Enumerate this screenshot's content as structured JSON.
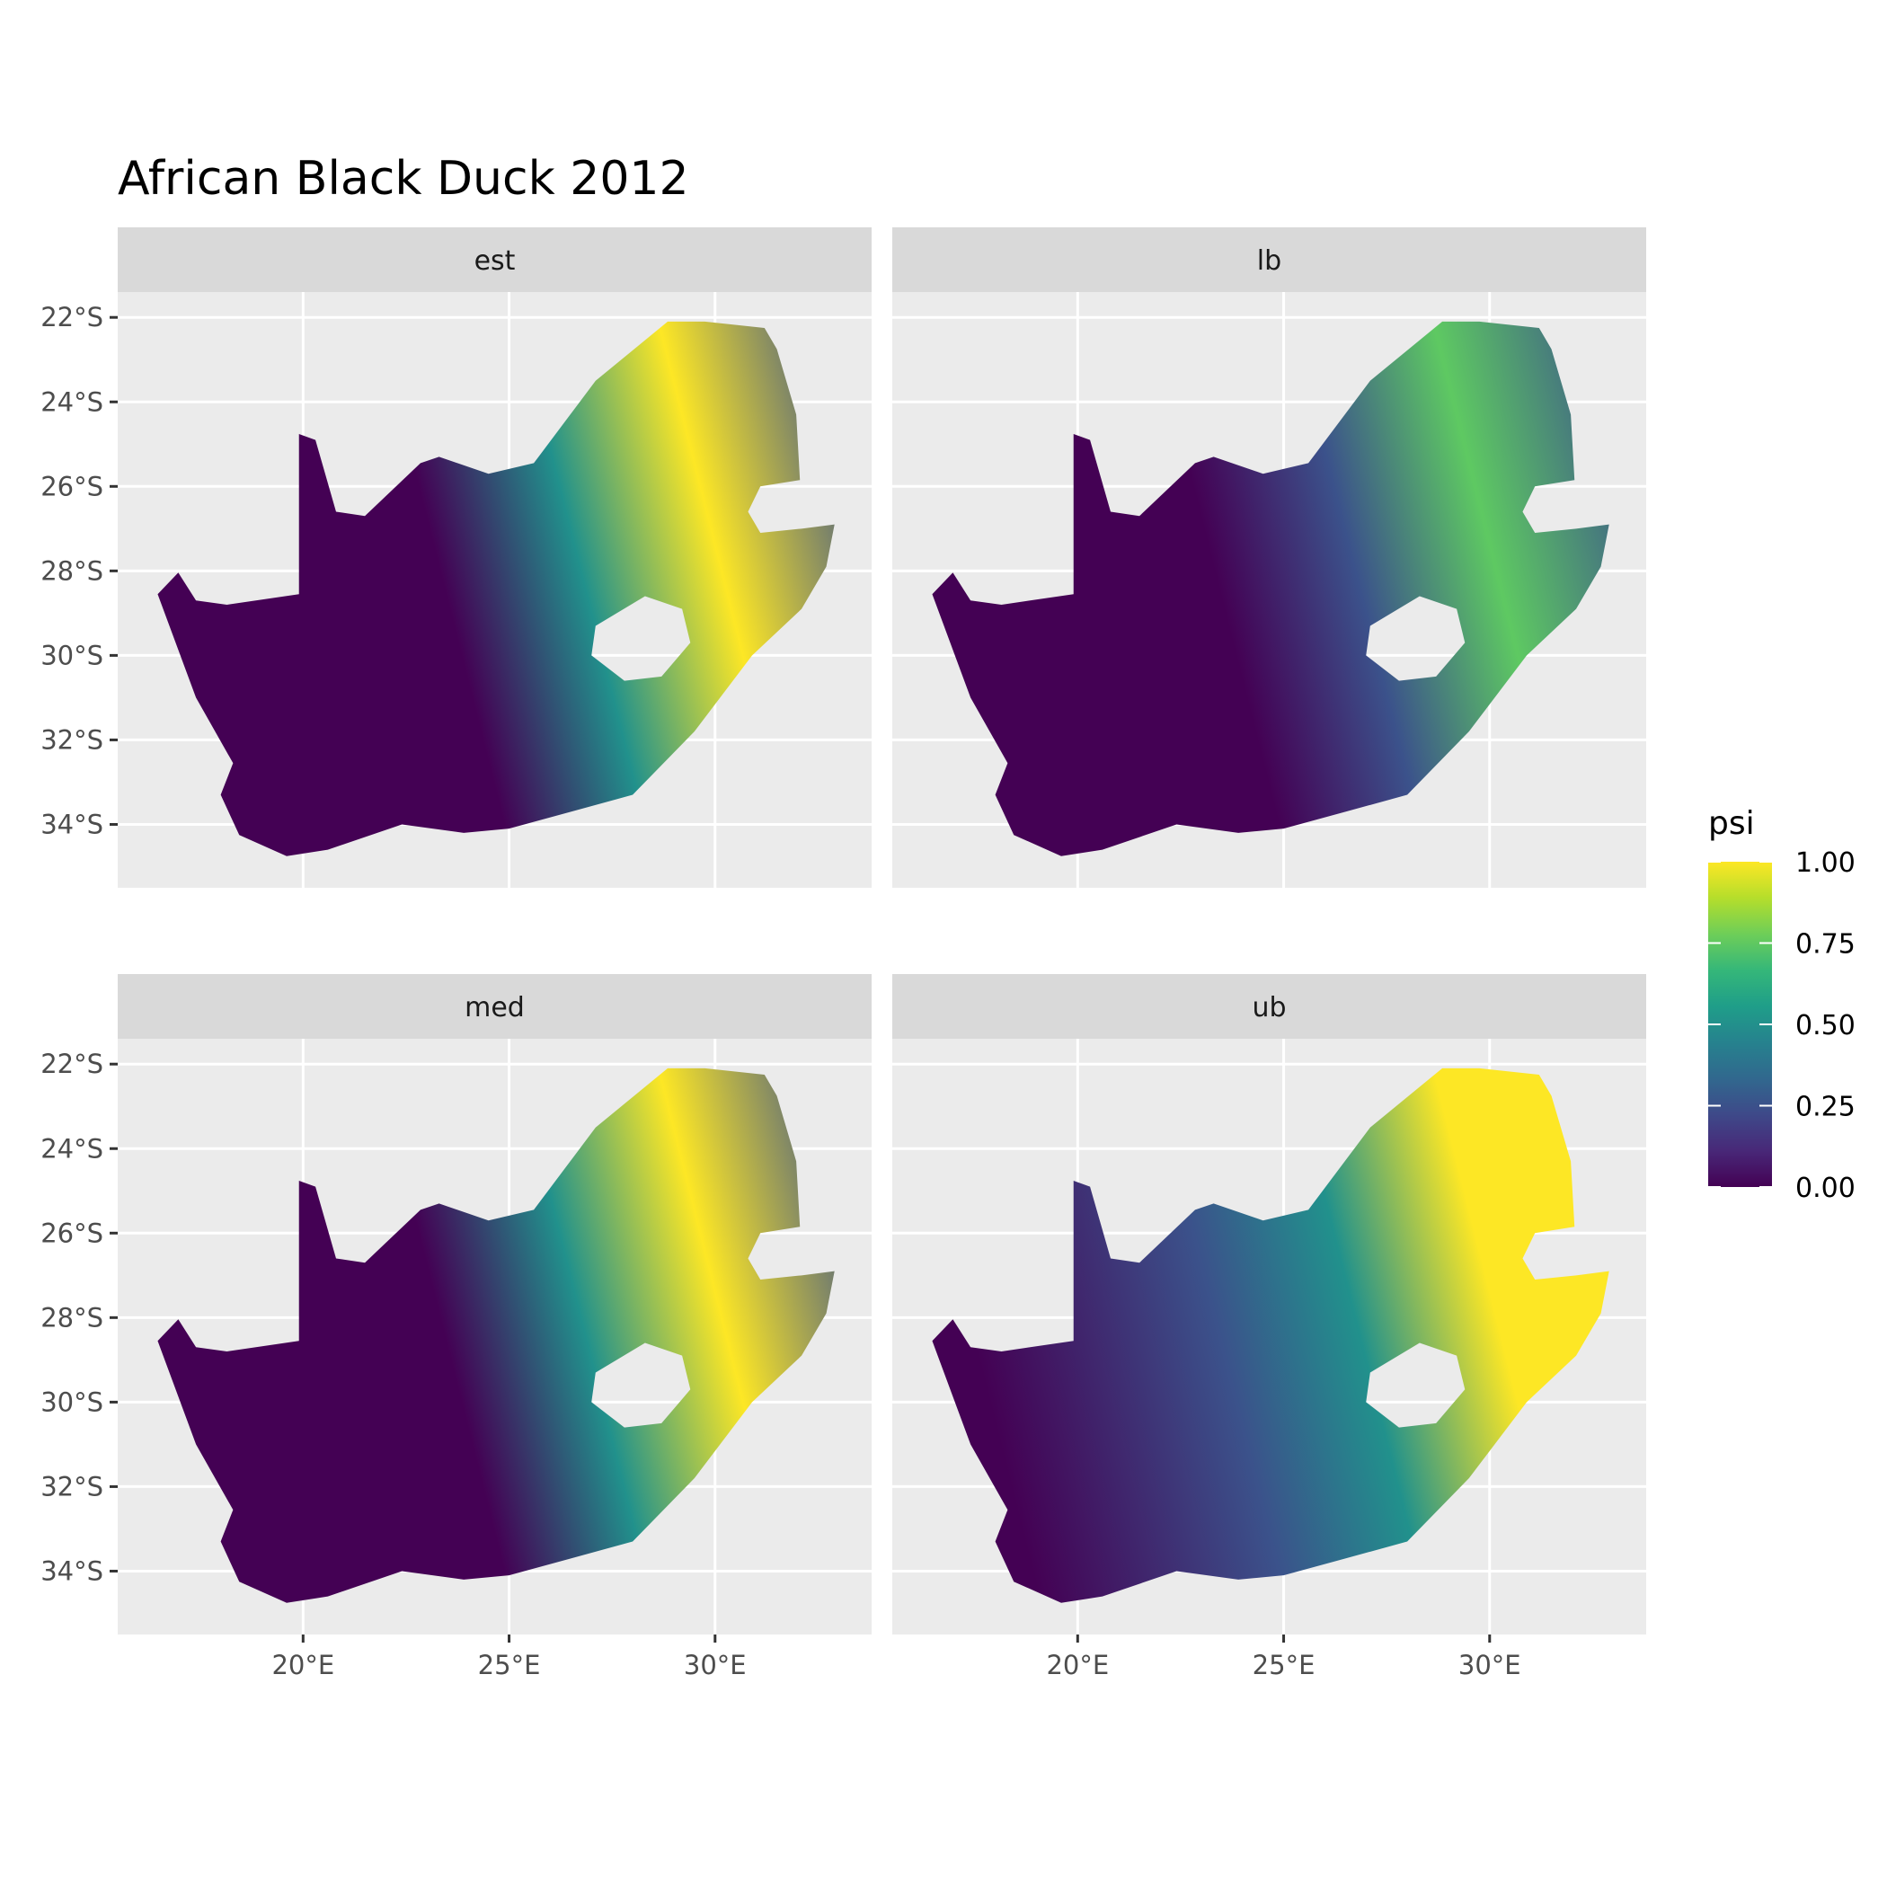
{
  "title": "African Black Duck 2012",
  "chart_data": {
    "type": "heatmap",
    "title": "African Black Duck 2012",
    "xlabel": "",
    "ylabel": "",
    "facets": [
      "est",
      "lb",
      "med",
      "ub"
    ],
    "x_ticks": [
      20,
      25,
      30
    ],
    "x_tick_labels": [
      "20°E",
      "25°E",
      "30°E"
    ],
    "y_ticks": [
      -22,
      -24,
      -26,
      -28,
      -30,
      -32,
      -34
    ],
    "y_tick_labels": [
      "22°S",
      "24°S",
      "26°S",
      "28°S",
      "30°S",
      "32°S",
      "34°S"
    ],
    "xlim": [
      15.5,
      33.8
    ],
    "ylim": [
      -35.5,
      -21.4
    ],
    "grid": true,
    "legend": {
      "title": "psi",
      "position": "right",
      "range": [
        0,
        1
      ],
      "breaks": [
        0,
        0.25,
        0.5,
        0.75,
        1
      ],
      "break_labels": [
        "0.00",
        "0.25",
        "0.50",
        "0.75",
        "1.00"
      ],
      "palette": "viridis",
      "colors": [
        "#440154",
        "#3b528b",
        "#21918c",
        "#5ec962",
        "#fde725"
      ]
    },
    "facet_mean_brightness": {
      "est": 0.45,
      "lb": 0.3,
      "med": 0.45,
      "ub": 0.6
    }
  }
}
